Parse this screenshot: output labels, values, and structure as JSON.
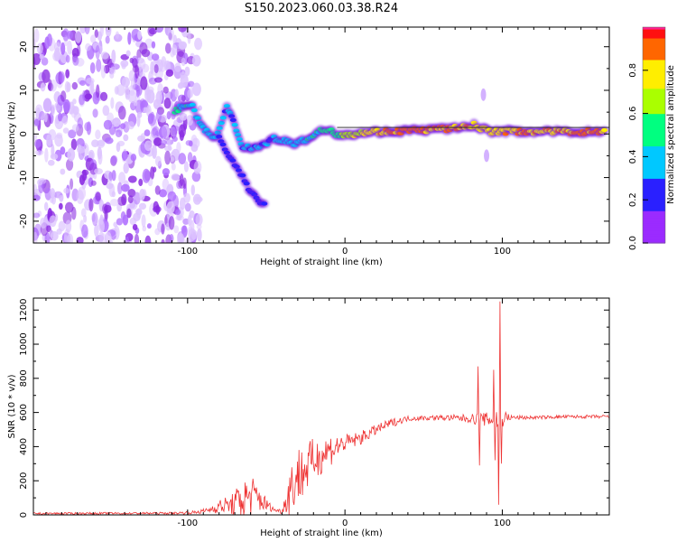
{
  "title": "S150.2023.060.03.38.R24",
  "chart_data": [
    {
      "type": "heatmap",
      "name": "spectrogram",
      "xlabel": "Height of straight line (km)",
      "ylabel": "Frequency (Hz)",
      "xlim": [
        -198,
        168
      ],
      "ylim": [
        -25,
        24.5
      ],
      "xticks": [
        -100,
        0,
        100
      ],
      "xtick_labels": [
        "-100",
        "0",
        "100"
      ],
      "yticks": [
        -20,
        -10,
        0,
        10,
        20
      ],
      "ytick_labels": [
        "-20",
        "-10",
        "0",
        "10",
        "20"
      ],
      "noise_region_x": [
        -198,
        -100
      ],
      "ridge": [
        {
          "x": -108,
          "y": 5.5,
          "a": 0.45
        },
        {
          "x": -98,
          "y": 7,
          "a": 0.4
        },
        {
          "x": -90,
          "y": 1,
          "a": 0.35
        },
        {
          "x": -82,
          "y": -1,
          "a": 0.35
        },
        {
          "x": -75,
          "y": 6,
          "a": 0.3
        },
        {
          "x": -70,
          "y": 2,
          "a": 0.3
        },
        {
          "x": -65,
          "y": -3,
          "a": 0.3
        },
        {
          "x": -55,
          "y": -3,
          "a": 0.3
        },
        {
          "x": -45,
          "y": -1,
          "a": 0.35
        },
        {
          "x": -35,
          "y": -2,
          "a": 0.35
        },
        {
          "x": -28,
          "y": -2,
          "a": 0.4
        },
        {
          "x": -20,
          "y": 0,
          "a": 0.45
        },
        {
          "x": -12,
          "y": 1,
          "a": 0.5
        },
        {
          "x": -5,
          "y": 0,
          "a": 0.55
        },
        {
          "x": 5,
          "y": 0,
          "a": 0.7
        },
        {
          "x": 15,
          "y": 0.5,
          "a": 0.75
        },
        {
          "x": 25,
          "y": 0.5,
          "a": 0.85
        },
        {
          "x": 40,
          "y": 0.8,
          "a": 0.9
        },
        {
          "x": 55,
          "y": 1,
          "a": 0.85
        },
        {
          "x": 70,
          "y": 1.3,
          "a": 0.85
        },
        {
          "x": 82,
          "y": 2,
          "a": 0.8
        },
        {
          "x": 92,
          "y": 0.6,
          "a": 0.75
        },
        {
          "x": 110,
          "y": 0.6,
          "a": 0.85
        },
        {
          "x": 130,
          "y": 0.5,
          "a": 0.85
        },
        {
          "x": 150,
          "y": 0.5,
          "a": 0.85
        },
        {
          "x": 166,
          "y": 0.5,
          "a": 0.85
        }
      ],
      "branch": [
        {
          "x": -80,
          "y": -1,
          "a": 0.25
        },
        {
          "x": -70,
          "y": -7,
          "a": 0.25
        },
        {
          "x": -60,
          "y": -13,
          "a": 0.25
        },
        {
          "x": -50,
          "y": -17,
          "a": 0.2
        }
      ],
      "spikes": [
        {
          "x": 88,
          "y": 9,
          "a": 0.2
        },
        {
          "x": 90,
          "y": -5,
          "a": 0.25
        }
      ]
    },
    {
      "type": "colorbar",
      "name": "colorbar",
      "label": "Normalized spectral amplitude",
      "range": [
        0,
        1
      ],
      "ticks": [
        0,
        0.2,
        0.4,
        0.6,
        0.8
      ],
      "tick_labels": [
        "0.0",
        "0.2",
        "0.4",
        "0.6",
        "0.8"
      ]
    },
    {
      "type": "line",
      "name": "snr",
      "xlabel": "Height of straight line (km)",
      "ylabel": "SNR (10 * v/v)",
      "xlim": [
        -198,
        168
      ],
      "ylim": [
        0,
        1270
      ],
      "xticks": [
        -100,
        0,
        100
      ],
      "xtick_labels": [
        "-100",
        "0",
        "100"
      ],
      "yticks": [
        0,
        200,
        400,
        600,
        800,
        1000,
        1200
      ],
      "ytick_labels": [
        "0",
        "200",
        "400",
        "600",
        "800",
        "1000",
        "1200"
      ],
      "color": "#ee3333",
      "envelope": {
        "x": [
          -198,
          -110,
          -95,
          -88,
          -80,
          -72,
          -65,
          -60,
          -55,
          -50,
          -45,
          -40,
          -35,
          -30,
          -25,
          -20,
          -15,
          -10,
          0,
          10,
          20,
          30,
          40,
          60,
          80,
          85,
          90,
          95,
          98,
          100,
          105,
          120,
          140,
          168
        ],
        "base": [
          8,
          10,
          15,
          25,
          50,
          60,
          90,
          110,
          100,
          60,
          30,
          20,
          150,
          230,
          270,
          320,
          350,
          380,
          420,
          450,
          500,
          540,
          565,
          570,
          565,
          560,
          560,
          560,
          560,
          570,
          570,
          570,
          575,
          575
        ],
        "amp": [
          6,
          6,
          10,
          15,
          40,
          60,
          120,
          130,
          90,
          40,
          10,
          15,
          150,
          180,
          150,
          130,
          110,
          100,
          50,
          40,
          30,
          25,
          15,
          15,
          25,
          40,
          40,
          60,
          80,
          60,
          15,
          10,
          10,
          10
        ]
      },
      "spikes": [
        {
          "x": 84.5,
          "y": 870
        },
        {
          "x": 85.5,
          "y": 290
        },
        {
          "x": 94.5,
          "y": 850
        },
        {
          "x": 95.5,
          "y": 320
        },
        {
          "x": 97.5,
          "y": 60
        },
        {
          "x": 98.5,
          "y": 1250
        },
        {
          "x": 99.5,
          "y": 300
        }
      ]
    }
  ]
}
